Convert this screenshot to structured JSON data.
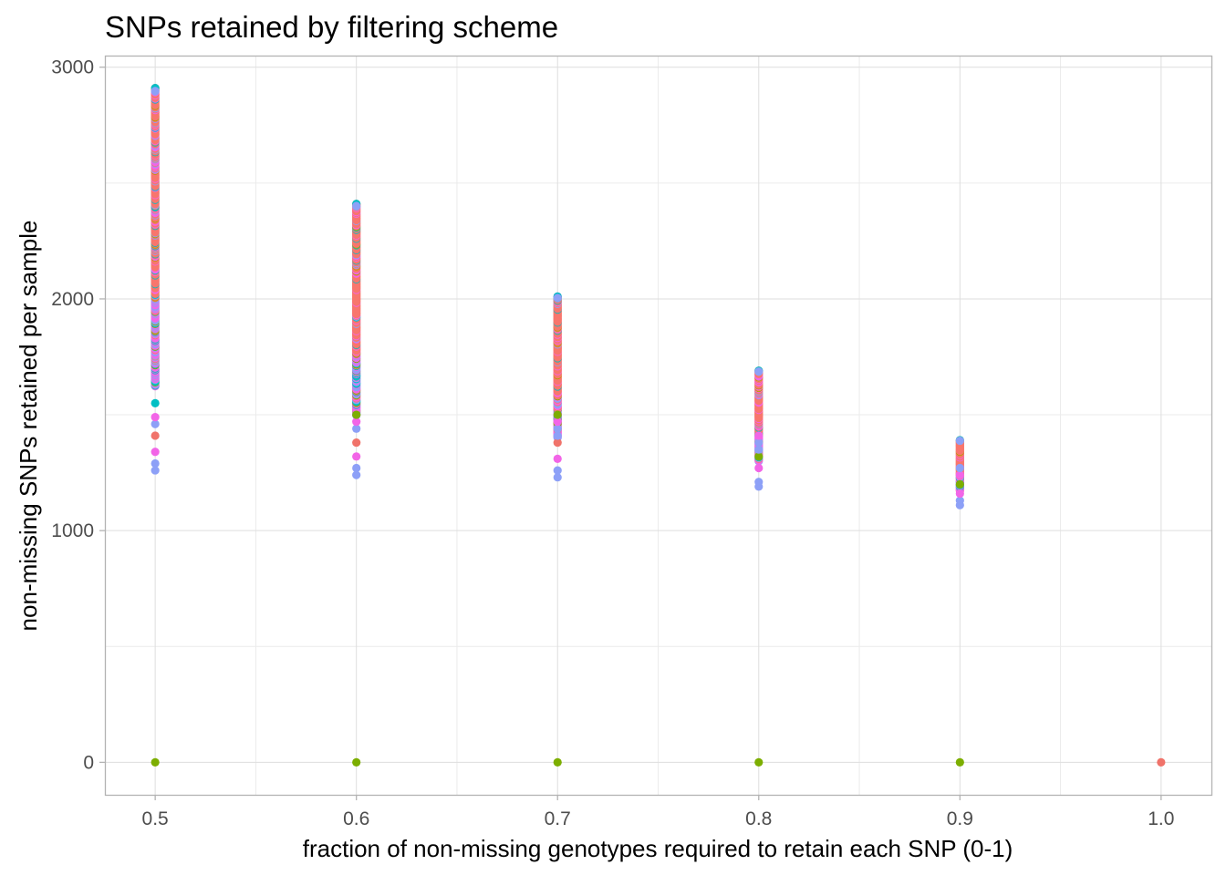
{
  "chart_data": {
    "type": "scatter",
    "title": "SNPs retained by filtering scheme",
    "xlabel": "fraction of non-missing genotypes required to retain each SNP (0-1)",
    "ylabel": "non-missing SNPs retained per sample",
    "xlim": [
      0.475,
      1.025
    ],
    "ylim": [
      -140,
      3050
    ],
    "x_ticks": [
      0.5,
      0.6,
      0.7,
      0.8,
      0.9,
      1.0
    ],
    "x_tick_labels": [
      "0.5",
      "0.6",
      "0.7",
      "0.8",
      "0.9",
      "1.0"
    ],
    "y_ticks": [
      0,
      1000,
      2000,
      3000
    ],
    "y_tick_labels": [
      "0",
      "1000",
      "2000",
      "3000"
    ],
    "grid": true,
    "legend": "none",
    "x": [
      0.5,
      0.6,
      0.7,
      0.8,
      0.9,
      1.0
    ],
    "columns": [
      {
        "x": 0.5,
        "min": 1260,
        "max": 2910,
        "zero": true,
        "outliers": [
          {
            "y": 1260,
            "color": "#8DA0F7"
          },
          {
            "y": 1290,
            "color": "#8DA0F7"
          },
          {
            "y": 1340,
            "color": "#F265E7"
          },
          {
            "y": 1410,
            "color": "#F0736A"
          },
          {
            "y": 1460,
            "color": "#8DA0F7"
          },
          {
            "y": 1490,
            "color": "#F265E7"
          },
          {
            "y": 1550,
            "color": "#00BFC4"
          }
        ]
      },
      {
        "x": 0.6,
        "min": 1240,
        "max": 2410,
        "zero": true,
        "outliers": [
          {
            "y": 1240,
            "color": "#8DA0F7"
          },
          {
            "y": 1270,
            "color": "#8DA0F7"
          },
          {
            "y": 1320,
            "color": "#F265E7"
          },
          {
            "y": 1380,
            "color": "#F0736A"
          },
          {
            "y": 1440,
            "color": "#8DA0F7"
          },
          {
            "y": 1470,
            "color": "#F265E7"
          },
          {
            "y": 1500,
            "color": "#7CAE00"
          }
        ]
      },
      {
        "x": 0.7,
        "min": 1230,
        "max": 2010,
        "zero": true,
        "outliers": [
          {
            "y": 1230,
            "color": "#8DA0F7"
          },
          {
            "y": 1260,
            "color": "#8DA0F7"
          },
          {
            "y": 1310,
            "color": "#F265E7"
          },
          {
            "y": 1380,
            "color": "#F0736A"
          },
          {
            "y": 1410,
            "color": "#8DA0F7"
          },
          {
            "y": 1440,
            "color": "#8DA0F7"
          },
          {
            "y": 1470,
            "color": "#F265E7"
          },
          {
            "y": 1500,
            "color": "#7CAE00"
          }
        ]
      },
      {
        "x": 0.8,
        "min": 1190,
        "max": 1690,
        "zero": true,
        "outliers": [
          {
            "y": 1190,
            "color": "#8DA0F7"
          },
          {
            "y": 1210,
            "color": "#8DA0F7"
          },
          {
            "y": 1270,
            "color": "#F265E7"
          },
          {
            "y": 1320,
            "color": "#7CAE00"
          },
          {
            "y": 1350,
            "color": "#8DA0F7"
          },
          {
            "y": 1380,
            "color": "#8DA0F7"
          },
          {
            "y": 1410,
            "color": "#F265E7"
          }
        ]
      },
      {
        "x": 0.9,
        "min": 1110,
        "max": 1390,
        "zero": true,
        "outliers": [
          {
            "y": 1110,
            "color": "#8DA0F7"
          },
          {
            "y": 1130,
            "color": "#8DA0F7"
          },
          {
            "y": 1160,
            "color": "#F265E7"
          },
          {
            "y": 1200,
            "color": "#7CAE00"
          },
          {
            "y": 1240,
            "color": "#F265E7"
          },
          {
            "y": 1270,
            "color": "#8DA0F7"
          }
        ]
      },
      {
        "x": 1.0,
        "min": 0,
        "max": 0,
        "zero": true,
        "zero_color": "#F0736A",
        "outliers": []
      }
    ],
    "colors": {
      "main": "#F8766D",
      "magenta": "#F265E7",
      "blue": "#8DA0F7",
      "cyan": "#00BFC4",
      "green": "#7CAE00",
      "olive": "#B7A000"
    }
  }
}
